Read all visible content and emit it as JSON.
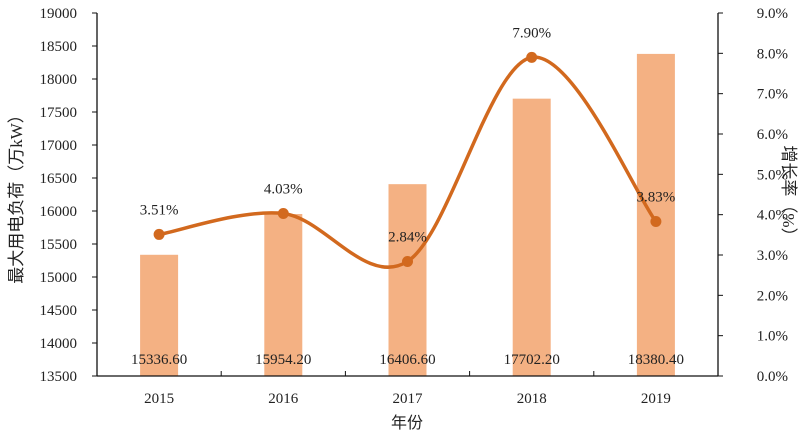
{
  "chart_data": {
    "type": "bar+line",
    "categories": [
      "2015",
      "2016",
      "2017",
      "2018",
      "2019"
    ],
    "series": [
      {
        "name": "最大用电负荷",
        "type": "bar",
        "axis": "left",
        "values": [
          15336.6,
          15954.2,
          16406.6,
          17702.2,
          18380.4
        ],
        "labels": [
          "15336.60",
          "15954.20",
          "16406.60",
          "17702.20",
          "18380.40"
        ],
        "color": "#F4B183"
      },
      {
        "name": "增长率",
        "type": "line",
        "axis": "right",
        "smooth": true,
        "values": [
          3.51,
          4.03,
          2.84,
          7.9,
          3.83
        ],
        "labels": [
          "3.51%",
          "4.03%",
          "2.84%",
          "7.90%",
          "3.83%"
        ],
        "color": "#D2691E"
      }
    ],
    "xlabel": "年份",
    "ylabel": "最大用电负荷（万kW）",
    "y2label": "增长率（%）",
    "ylim": [
      13500,
      19000
    ],
    "yticks": [
      13500,
      14000,
      14500,
      15000,
      15500,
      16000,
      16500,
      17000,
      17500,
      18000,
      18500,
      19000
    ],
    "y2lim": [
      0,
      9
    ],
    "y2ticks": [
      "0.0%",
      "1.0%",
      "2.0%",
      "3.0%",
      "4.0%",
      "5.0%",
      "6.0%",
      "7.0%",
      "8.0%",
      "9.0%"
    ],
    "grid": false,
    "legend": "none"
  }
}
